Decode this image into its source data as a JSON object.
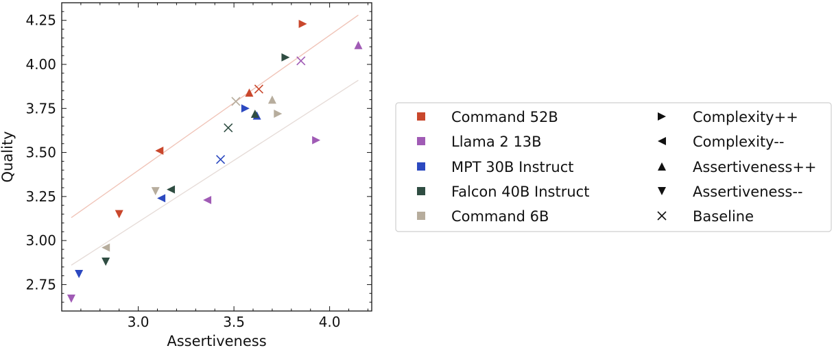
{
  "chart_data": {
    "type": "scatter",
    "xlabel": "Assertiveness",
    "ylabel": "Quality",
    "xlim": [
      2.6,
      4.22
    ],
    "ylim": [
      2.6,
      4.35
    ],
    "xticks": [
      3.0,
      3.5,
      4.0
    ],
    "xtick_labels": [
      "3.0",
      "3.5",
      "4.0"
    ],
    "yticks": [
      2.75,
      3.0,
      3.25,
      3.5,
      3.75,
      4.0,
      4.25
    ],
    "ytick_labels": [
      "2.75",
      "3.00",
      "3.25",
      "3.50",
      "3.75",
      "4.00",
      "4.25"
    ],
    "grid": false,
    "legend_position": "right",
    "models": [
      {
        "name": "Command 52B",
        "color": "#c9472c"
      },
      {
        "name": "Llama 2 13B",
        "color": "#a05bb5"
      },
      {
        "name": "MPT 30B Instruct",
        "color": "#2c49c0"
      },
      {
        "name": "Falcon 40B Instruct",
        "color": "#2f4d42"
      },
      {
        "name": "Command 6B",
        "color": "#b7ad9d"
      }
    ],
    "markers": [
      {
        "name": "Complexity++",
        "symbol": "triangle-right"
      },
      {
        "name": "Complexity--",
        "symbol": "triangle-left"
      },
      {
        "name": "Assertiveness++",
        "symbol": "triangle-up"
      },
      {
        "name": "Assertiveness--",
        "symbol": "triangle-down"
      },
      {
        "name": "Baseline",
        "symbol": "x"
      }
    ],
    "points": [
      {
        "model": "Command 52B",
        "marker": "Complexity++",
        "x": 3.86,
        "y": 4.23
      },
      {
        "model": "Command 52B",
        "marker": "Baseline",
        "x": 3.63,
        "y": 3.86
      },
      {
        "model": "Command 52B",
        "marker": "Assertiveness++",
        "x": 3.58,
        "y": 3.84
      },
      {
        "model": "Command 52B",
        "marker": "Complexity--",
        "x": 3.11,
        "y": 3.51
      },
      {
        "model": "Command 52B",
        "marker": "Assertiveness--",
        "x": 2.9,
        "y": 3.15
      },
      {
        "model": "Llama 2 13B",
        "marker": "Assertiveness++",
        "x": 4.15,
        "y": 4.11
      },
      {
        "model": "Llama 2 13B",
        "marker": "Baseline",
        "x": 3.85,
        "y": 4.02
      },
      {
        "model": "Llama 2 13B",
        "marker": "Complexity++",
        "x": 3.93,
        "y": 3.57
      },
      {
        "model": "Llama 2 13B",
        "marker": "Complexity--",
        "x": 3.36,
        "y": 3.23
      },
      {
        "model": "Llama 2 13B",
        "marker": "Assertiveness--",
        "x": 2.65,
        "y": 2.67
      },
      {
        "model": "MPT 30B Instruct",
        "marker": "Complexity++",
        "x": 3.56,
        "y": 3.75
      },
      {
        "model": "MPT 30B Instruct",
        "marker": "Assertiveness++",
        "x": 3.62,
        "y": 3.71
      },
      {
        "model": "MPT 30B Instruct",
        "marker": "Baseline",
        "x": 3.43,
        "y": 3.46
      },
      {
        "model": "MPT 30B Instruct",
        "marker": "Complexity--",
        "x": 3.12,
        "y": 3.24
      },
      {
        "model": "MPT 30B Instruct",
        "marker": "Assertiveness--",
        "x": 2.69,
        "y": 2.81
      },
      {
        "model": "Falcon 40B Instruct",
        "marker": "Complexity++",
        "x": 3.77,
        "y": 4.04
      },
      {
        "model": "Falcon 40B Instruct",
        "marker": "Assertiveness++",
        "x": 3.61,
        "y": 3.72
      },
      {
        "model": "Falcon 40B Instruct",
        "marker": "Baseline",
        "x": 3.47,
        "y": 3.64
      },
      {
        "model": "Falcon 40B Instruct",
        "marker": "Complexity--",
        "x": 3.17,
        "y": 3.29
      },
      {
        "model": "Falcon 40B Instruct",
        "marker": "Assertiveness--",
        "x": 2.83,
        "y": 2.88
      },
      {
        "model": "Command 6B",
        "marker": "Assertiveness++",
        "x": 3.7,
        "y": 3.8
      },
      {
        "model": "Command 6B",
        "marker": "Baseline",
        "x": 3.51,
        "y": 3.79
      },
      {
        "model": "Command 6B",
        "marker": "Complexity++",
        "x": 3.73,
        "y": 3.72
      },
      {
        "model": "Command 6B",
        "marker": "Assertiveness--",
        "x": 3.09,
        "y": 3.28
      },
      {
        "model": "Command 6B",
        "marker": "Complexity--",
        "x": 2.83,
        "y": 2.96
      }
    ],
    "trendlines": [
      {
        "name": "upper-trend",
        "color": "#f0c4b8",
        "x": [
          2.65,
          4.15
        ],
        "y": [
          3.13,
          4.28
        ]
      },
      {
        "name": "lower-trend",
        "color": "#e6dcd8",
        "x": [
          2.65,
          4.15
        ],
        "y": [
          2.86,
          3.91
        ]
      }
    ]
  }
}
